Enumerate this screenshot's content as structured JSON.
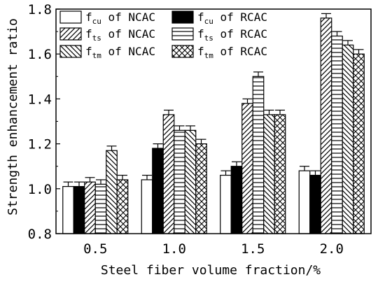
{
  "chart_data": {
    "type": "bar",
    "xlabel": "Steel fiber volume fraction/%",
    "ylabel": "Strength enhancement ratio",
    "ylim": [
      0.8,
      1.8
    ],
    "yticks": [
      "0.8",
      "1.0",
      "1.2",
      "1.4",
      "1.6",
      "1.8"
    ],
    "categories": [
      "0.5",
      "1.0",
      "1.5",
      "2.0"
    ],
    "series": [
      {
        "name": "fcu of NCAC",
        "symbol": "f",
        "sub": "cu",
        "suffix": " of NCAC",
        "pattern": "white",
        "values": [
          1.01,
          1.04,
          1.06,
          1.08
        ],
        "errors": [
          0.02,
          0.02,
          0.02,
          0.02
        ]
      },
      {
        "name": "fcu of RCAC",
        "symbol": "f",
        "sub": "cu",
        "suffix": " of RCAC",
        "pattern": "black",
        "values": [
          1.01,
          1.18,
          1.1,
          1.06
        ],
        "errors": [
          0.02,
          0.02,
          0.02,
          0.02
        ]
      },
      {
        "name": "fts of NCAC",
        "symbol": "f",
        "sub": "ts",
        "suffix": " of NCAC",
        "pattern": "forward-diagonal",
        "values": [
          1.03,
          1.33,
          1.38,
          1.76
        ],
        "errors": [
          0.02,
          0.02,
          0.02,
          0.02
        ]
      },
      {
        "name": "fts of RCAC",
        "symbol": "f",
        "sub": "ts",
        "suffix": " of RCAC",
        "pattern": "horizontal",
        "values": [
          1.02,
          1.26,
          1.5,
          1.68
        ],
        "errors": [
          0.02,
          0.02,
          0.02,
          0.02
        ]
      },
      {
        "name": "ftm of NCAC",
        "symbol": "f",
        "sub": "tm",
        "suffix": " of NCAC",
        "pattern": "back-diagonal",
        "values": [
          1.17,
          1.26,
          1.33,
          1.64
        ],
        "errors": [
          0.02,
          0.02,
          0.02,
          0.02
        ]
      },
      {
        "name": "ftm of RCAC",
        "symbol": "f",
        "sub": "tm",
        "suffix": " of RCAC",
        "pattern": "crosshatch",
        "values": [
          1.04,
          1.2,
          1.33,
          1.6
        ],
        "errors": [
          0.02,
          0.02,
          0.02,
          0.02
        ]
      }
    ],
    "legend": "top-left, two columns",
    "grid": false
  }
}
